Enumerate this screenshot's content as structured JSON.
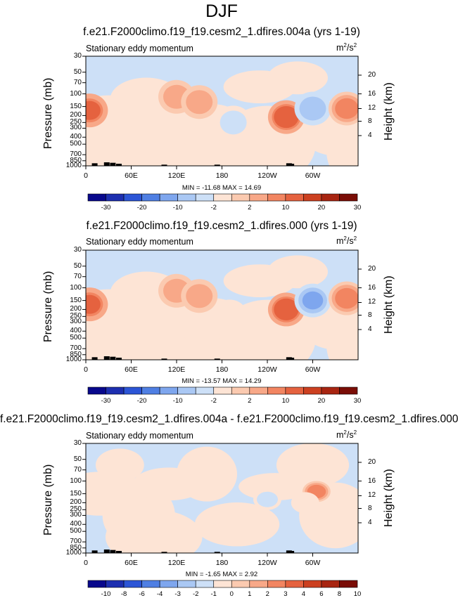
{
  "season": "DJF",
  "field_label": "Stationary eddy momentum",
  "units": {
    "base": "m",
    "exp": "2",
    "den": "/s",
    "den_exp": "2"
  },
  "y_left_label": "Pressure (mb)",
  "y_right_label": "Height (km)",
  "pressure_ticks": [
    "30",
    "50",
    "70",
    "100",
    "150",
    "200",
    "250",
    "300",
    "400",
    "500",
    "700",
    "850",
    "1000"
  ],
  "height_ticks": [
    "20",
    "16",
    "12",
    "8",
    "4"
  ],
  "lon_ticks": [
    "0",
    "60E",
    "120E",
    "180",
    "120W",
    "60W"
  ],
  "cb_full": [
    "-30",
    "-20",
    "-10",
    "-2",
    "2",
    "10",
    "20",
    "30"
  ],
  "cb_diff": [
    "-10",
    "-8",
    "-6",
    "-4",
    "-3",
    "-2",
    "-1",
    "0",
    "1",
    "2",
    "3",
    "4",
    "6",
    "8",
    "10"
  ],
  "colors": {
    "full": [
      "#08088c",
      "#1d2fb0",
      "#2c55d6",
      "#4f7fe3",
      "#7ea6ee",
      "#aac8f4",
      "#cde0f7",
      "#fde4d5",
      "#fbcab0",
      "#f8a888",
      "#f28561",
      "#e5623f",
      "#cc4020",
      "#a82511",
      "#7a0d06"
    ],
    "diff": [
      "#08088c",
      "#1d2fb0",
      "#2c55d6",
      "#4f7fe3",
      "#7ea6ee",
      "#aac8f4",
      "#cde0f7",
      "#fde4d5",
      "#fbcab0",
      "#f8a888",
      "#f28561",
      "#e5623f",
      "#cc4020",
      "#a82511",
      "#7a0d06"
    ]
  },
  "panels": [
    {
      "title": "f.e21.F2000climo.f19_f19.cesm2_1.dfires.004a (yrs 1-19)",
      "min_max": "MIN = -11.68   MAX =  14.69"
    },
    {
      "title": "f.e21.F2000climo.f19_f19.cesm2_1.dfires.000 (yrs 1-19)",
      "min_max": "MIN = -13.57   MAX =  14.29"
    },
    {
      "title": "f.e21.F2000climo.f19_f19.cesm2_1.dfires.004a - f.e21.F2000climo.f19_f19.cesm2_1.dfires.000",
      "min_max": "MIN = -1.65   MAX =  2.92"
    }
  ],
  "chart_data": [
    {
      "type": "heatmap",
      "title": "f.e21.F2000climo.f19_f19.cesm2_1.dfires.004a (yrs 1-19)",
      "subtitle": "Stationary eddy momentum",
      "xlabel": "",
      "ylabel": "Pressure (mb)",
      "y2label": "Height (km)",
      "min": -11.68,
      "max": 14.69,
      "features": [
        {
          "lon": 5,
          "p": 170,
          "value": 12,
          "sign": "pos"
        },
        {
          "lon": 120,
          "p": 110,
          "value": 5,
          "sign": "pos"
        },
        {
          "lon": 150,
          "p": 130,
          "value": 4,
          "sign": "pos"
        },
        {
          "lon": 195,
          "p": 250,
          "value": -5,
          "sign": "neg"
        },
        {
          "lon": 265,
          "p": 210,
          "value": 14.69,
          "sign": "pos"
        },
        {
          "lon": 300,
          "p": 160,
          "value": -11.68,
          "sign": "neg"
        },
        {
          "lon": 345,
          "p": 160,
          "value": 8,
          "sign": "pos"
        }
      ]
    },
    {
      "type": "heatmap",
      "title": "f.e21.F2000climo.f19_f19.cesm2_1.dfires.000 (yrs 1-19)",
      "subtitle": "Stationary eddy momentum",
      "xlabel": "",
      "ylabel": "Pressure (mb)",
      "y2label": "Height (km)",
      "min": -13.57,
      "max": 14.29,
      "features": [
        {
          "lon": 5,
          "p": 170,
          "value": 12,
          "sign": "pos"
        },
        {
          "lon": 120,
          "p": 110,
          "value": 5,
          "sign": "pos"
        },
        {
          "lon": 150,
          "p": 130,
          "value": 4,
          "sign": "pos"
        },
        {
          "lon": 190,
          "p": 250,
          "value": -3,
          "sign": "neg"
        },
        {
          "lon": 265,
          "p": 200,
          "value": 14.29,
          "sign": "pos"
        },
        {
          "lon": 300,
          "p": 150,
          "value": -13.57,
          "sign": "neg"
        },
        {
          "lon": 345,
          "p": 140,
          "value": 8,
          "sign": "pos"
        }
      ]
    },
    {
      "type": "heatmap",
      "title": "f.e21.F2000climo.f19_f19.cesm2_1.dfires.004a - f.e21.F2000climo.f19_f19.cesm2_1.dfires.000",
      "subtitle": "Stationary eddy momentum",
      "xlabel": "",
      "ylabel": "Pressure (mb)",
      "y2label": "Height (km)",
      "min": -1.65,
      "max": 2.92,
      "features": [
        {
          "lon": 305,
          "p": 140,
          "value": 2.92,
          "sign": "pos"
        },
        {
          "lon": 240,
          "p": 180,
          "value": -1.65,
          "sign": "neg"
        },
        {
          "lon": 290,
          "p": 200,
          "value": -1,
          "sign": "neg"
        }
      ]
    }
  ]
}
